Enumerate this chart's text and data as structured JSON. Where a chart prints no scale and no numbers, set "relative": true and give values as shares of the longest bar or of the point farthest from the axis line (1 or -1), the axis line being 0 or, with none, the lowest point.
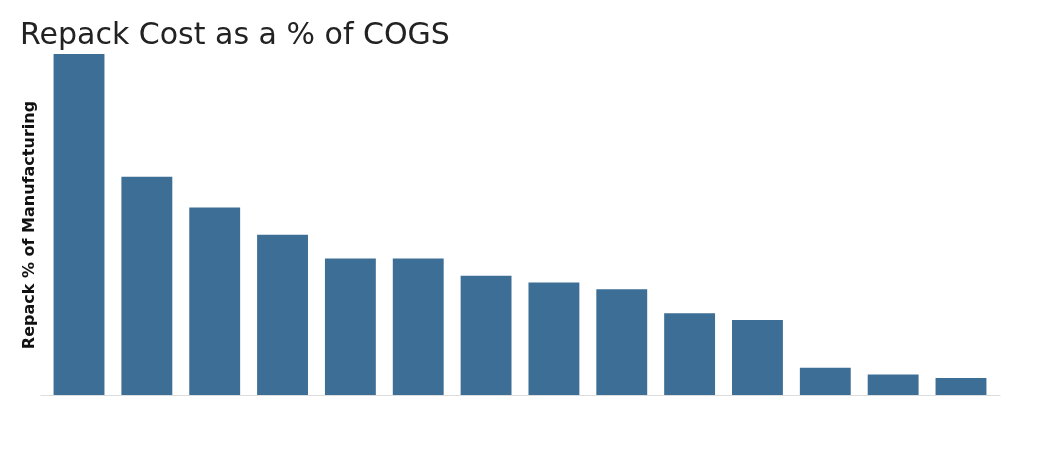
{
  "chart_data": {
    "type": "bar",
    "title": "Repack Cost as a % of COGS",
    "ylabel": "Repack % of Manufacturing",
    "relative": true,
    "categories": [
      null,
      null,
      null,
      null,
      null,
      null,
      null,
      null,
      null,
      null,
      null,
      null,
      null,
      null
    ],
    "values": [
      1,
      0.64,
      0.55,
      0.47,
      0.4,
      0.4,
      0.35,
      0.33,
      0.31,
      0.24,
      0.22,
      0.08,
      0.06,
      0.05
    ],
    "color": "#3d6e96",
    "grid": false
  }
}
